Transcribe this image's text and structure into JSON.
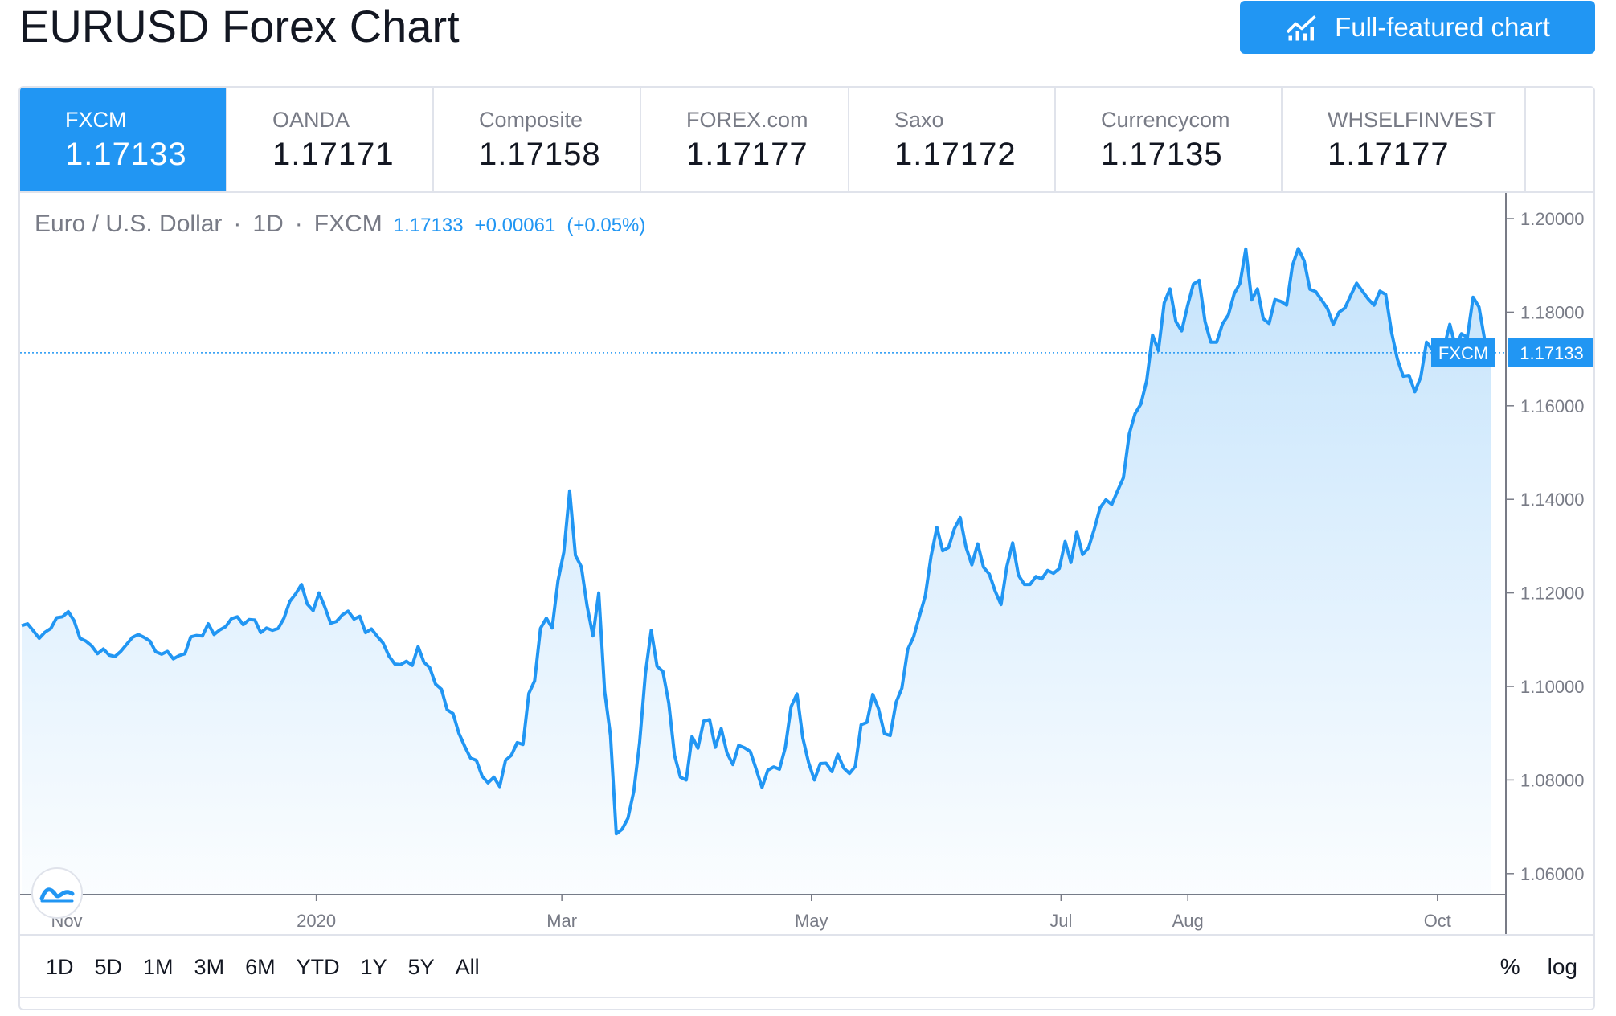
{
  "page": {
    "title": "EURUSD Forex Chart",
    "full_chart_label": "Full-featured chart",
    "accent_color": "#2196f3"
  },
  "tabs": [
    {
      "name": "FXCM",
      "price": "1.17133",
      "active": true
    },
    {
      "name": "OANDA",
      "price": "1.17171"
    },
    {
      "name": "Composite",
      "price": "1.17158"
    },
    {
      "name": "FOREX.com",
      "price": "1.17177"
    },
    {
      "name": "Saxo",
      "price": "1.17172"
    },
    {
      "name": "Currencycom",
      "price": "1.17135"
    },
    {
      "name": "WHSELFINVEST",
      "price": "1.17177"
    }
  ],
  "legend": {
    "symbol": "Euro / U.S. Dollar",
    "interval": "1D",
    "source": "FXCM",
    "last": "1.17133",
    "change": "+0.00061",
    "change_pct": "(+0.05%)"
  },
  "price_label": {
    "name": "FXCM",
    "value": "1.17133"
  },
  "range_buttons": [
    "1D",
    "5D",
    "1M",
    "3M",
    "6M",
    "YTD",
    "1Y",
    "5Y",
    "All"
  ],
  "scale_buttons": {
    "percent": "%",
    "log": "log"
  },
  "icons": {
    "full_chart": "chart-line-icon",
    "logo": "tradingview-logo-icon"
  },
  "chart_data": {
    "type": "area",
    "line_color": "#2196f3",
    "x_start": "2019-10-21",
    "x_end": "2020-10-14",
    "last_value": 1.17133,
    "ylim": [
      1.0555,
      1.2055
    ],
    "y_ticks": [
      "1.20000",
      "1.18000",
      "1.16000",
      "1.14000",
      "1.12000",
      "1.10000",
      "1.08000",
      "1.06000"
    ],
    "x_ticks": [
      {
        "label": "Nov",
        "date": "2019-11-01"
      },
      {
        "label": "2020",
        "date": "2020-01-01"
      },
      {
        "label": "Mar",
        "date": "2020-03-01"
      },
      {
        "label": "May",
        "date": "2020-05-01"
      },
      {
        "label": "Jul",
        "date": "2020-07-01"
      },
      {
        "label": "Aug",
        "date": "2020-08-01"
      },
      {
        "label": "Oct",
        "date": "2020-10-01"
      }
    ],
    "series": [
      {
        "values": [
          [
            1.113,
            1.1134,
            1.1119,
            1.1103,
            1.1116,
            1.1124,
            1.1147,
            1.1149,
            1.116,
            1.114,
            1.1103,
            1.1097,
            1.1087,
            1.107,
            1.108,
            1.1067,
            1.1064,
            1.1075,
            1.109,
            1.1105,
            1.1111,
            1.1105,
            1.1097,
            1.1074,
            1.1069,
            1.1075,
            1.1059,
            1.1066,
            1.107,
            1.1106,
            1.1109,
            1.1108,
            1.1134,
            1.1111,
            1.1121,
            1.1128,
            1.1145,
            1.1149,
            1.1132,
            1.1143,
            1.1142,
            1.1115,
            1.1125,
            1.112,
            1.1124,
            1.1146,
            1.1182,
            1.1198,
            1.1218,
            1.1176,
            1.1162,
            1.12,
            1.117,
            1.1135,
            1.1139,
            1.1153,
            1.1161,
            1.1144,
            1.115,
            1.1115,
            1.1123,
            1.1107
          ],
          [
            1.1093,
            1.1065,
            1.1048,
            1.1047,
            1.1054,
            1.1045,
            1.1085,
            1.1052,
            1.104,
            1.1005,
            1.0994,
            1.095,
            1.0942,
            1.09,
            1.0872,
            1.0847,
            1.0842,
            1.0808,
            1.0794,
            1.0806,
            1.0786,
            1.0842,
            1.0853,
            1.088,
            1.0876,
            1.0985,
            1.1012,
            1.1124,
            1.1146,
            1.1125,
            1.1226,
            1.1287,
            1.1418,
            1.128,
            1.1256,
            1.1172,
            1.1108,
            1.12,
            1.099,
            1.0895,
            1.0685,
            1.0695,
            1.0718,
            1.0776,
            1.0879,
            1.1028,
            1.112,
            1.1043,
            1.1032,
            1.0965,
            1.0853,
            1.0806,
            1.08,
            1.0893,
            1.0868,
            1.0926,
            1.0929,
            1.087,
            1.091
          ],
          [
            1.0858,
            1.0833,
            1.0874,
            1.0869,
            1.0861,
            1.0823,
            1.0784,
            1.0821,
            1.0828,
            1.0823,
            1.087,
            1.0957,
            1.0984,
            1.089,
            1.0837,
            1.08,
            1.0835,
            1.0836,
            1.0818,
            1.0855,
            1.0826,
            1.0814,
            1.0829,
            1.0918,
            1.0923,
            1.0983,
            1.0952,
            1.0899,
            1.0895,
            1.0966,
            1.0996,
            1.1079,
            1.1106,
            1.115,
            1.1193,
            1.1278,
            1.134,
            1.129,
            1.1297,
            1.1337,
            1.1361,
            1.1298,
            1.126,
            1.1305,
            1.1255,
            1.124,
            1.1204,
            1.1175,
            1.1256,
            1.1307,
            1.1238,
            1.1218,
            1.1218,
            1.1235,
            1.123,
            1.1248,
            1.1242,
            1.1252
          ],
          [
            1.131,
            1.1265,
            1.1331,
            1.1282,
            1.1296,
            1.1336,
            1.1382,
            1.1399,
            1.1389,
            1.1418,
            1.1446,
            1.154,
            1.1583,
            1.1604,
            1.1654,
            1.1751,
            1.1718,
            1.182,
            1.185,
            1.178,
            1.176,
            1.1813,
            1.186,
            1.1868,
            1.178,
            1.1736,
            1.1736,
            1.1775,
            1.1794,
            1.1839,
            1.1862,
            1.1935,
            1.1826,
            1.185,
            1.1786,
            1.1776,
            1.1827,
            1.1823,
            1.1815,
            1.19,
            1.1936,
            1.191,
            1.1849,
            1.1844,
            1.1826,
            1.1808,
            1.1774,
            1.18,
            1.1809,
            1.1836,
            1.1862,
            1.1845,
            1.1828,
            1.1815,
            1.1845,
            1.1838,
            1.1757,
            1.17,
            1.1663,
            1.1665,
            1.163,
            1.1661,
            1.1736,
            1.172,
            1.1738,
            1.1725,
            1.1774,
            1.1725,
            1.1754,
            1.1746,
            1.1832,
            1.1811,
            1.174,
            1.1713
          ]
        ]
      }
    ]
  }
}
